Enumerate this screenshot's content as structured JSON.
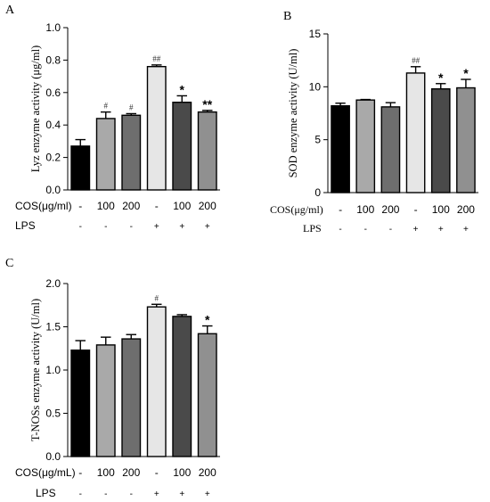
{
  "chart_data": [
    {
      "panel": "A",
      "type": "bar",
      "ylabel": "Lyz enzyme activity (μg/ml)",
      "ylim": [
        0,
        1.0
      ],
      "yticks": [
        "0.0",
        "0.2",
        "0.4",
        "0.6",
        "0.8",
        "1.0"
      ],
      "row1_label": "COS(μg/ml)",
      "row1_values": [
        "-",
        "100",
        "200",
        "-",
        "100",
        "200"
      ],
      "row2_label": "LPS",
      "row2_values": [
        "-",
        "-",
        "-",
        "+",
        "+",
        "+"
      ],
      "values": [
        0.27,
        0.44,
        0.46,
        0.76,
        0.54,
        0.48
      ],
      "errors": [
        0.04,
        0.04,
        0.01,
        0.01,
        0.04,
        0.01
      ],
      "colors": [
        "#000000",
        "#a9a9a9",
        "#6e6e6e",
        "#e6e6e6",
        "#4a4a4a",
        "#909090"
      ],
      "annotations": [
        "",
        "#",
        "#",
        "##",
        "*",
        "**"
      ]
    },
    {
      "panel": "B",
      "type": "bar",
      "ylabel": "SOD enzyme activity (U/ml)",
      "ylim": [
        0,
        15
      ],
      "yticks": [
        "0",
        "5",
        "10",
        "15"
      ],
      "row1_label": "COS(μg/ml)",
      "row1_values": [
        "-",
        "100",
        "200",
        "-",
        "100",
        "200"
      ],
      "row2_label": "LPS",
      "row2_values": [
        "-",
        "-",
        "-",
        "+",
        "+",
        "+"
      ],
      "values": [
        8.2,
        8.75,
        8.1,
        11.3,
        9.8,
        9.9
      ],
      "errors": [
        0.25,
        0.05,
        0.4,
        0.6,
        0.5,
        0.8
      ],
      "colors": [
        "#000000",
        "#a9a9a9",
        "#6e6e6e",
        "#e6e6e6",
        "#4a4a4a",
        "#909090"
      ],
      "annotations": [
        "",
        "",
        "",
        "##",
        "*",
        "*"
      ]
    },
    {
      "panel": "C",
      "type": "bar",
      "ylabel": "T-NOSs enzyme activity (U/ml)",
      "ylim": [
        0,
        2.0
      ],
      "yticks": [
        "0.0",
        "0.5",
        "1.0",
        "1.5",
        "2.0"
      ],
      "row1_label": "COS(μg/mL)",
      "row1_values": [
        "-",
        "100",
        "200",
        "-",
        "100",
        "200"
      ],
      "row2_label": "LPS",
      "row2_values": [
        "-",
        "-",
        "-",
        "+",
        "+",
        "+"
      ],
      "values": [
        1.23,
        1.29,
        1.36,
        1.73,
        1.62,
        1.42
      ],
      "errors": [
        0.11,
        0.09,
        0.05,
        0.03,
        0.02,
        0.09
      ],
      "colors": [
        "#000000",
        "#a9a9a9",
        "#6e6e6e",
        "#e6e6e6",
        "#4a4a4a",
        "#909090"
      ],
      "annotations": [
        "",
        "",
        "",
        "#",
        "",
        "*"
      ]
    }
  ]
}
